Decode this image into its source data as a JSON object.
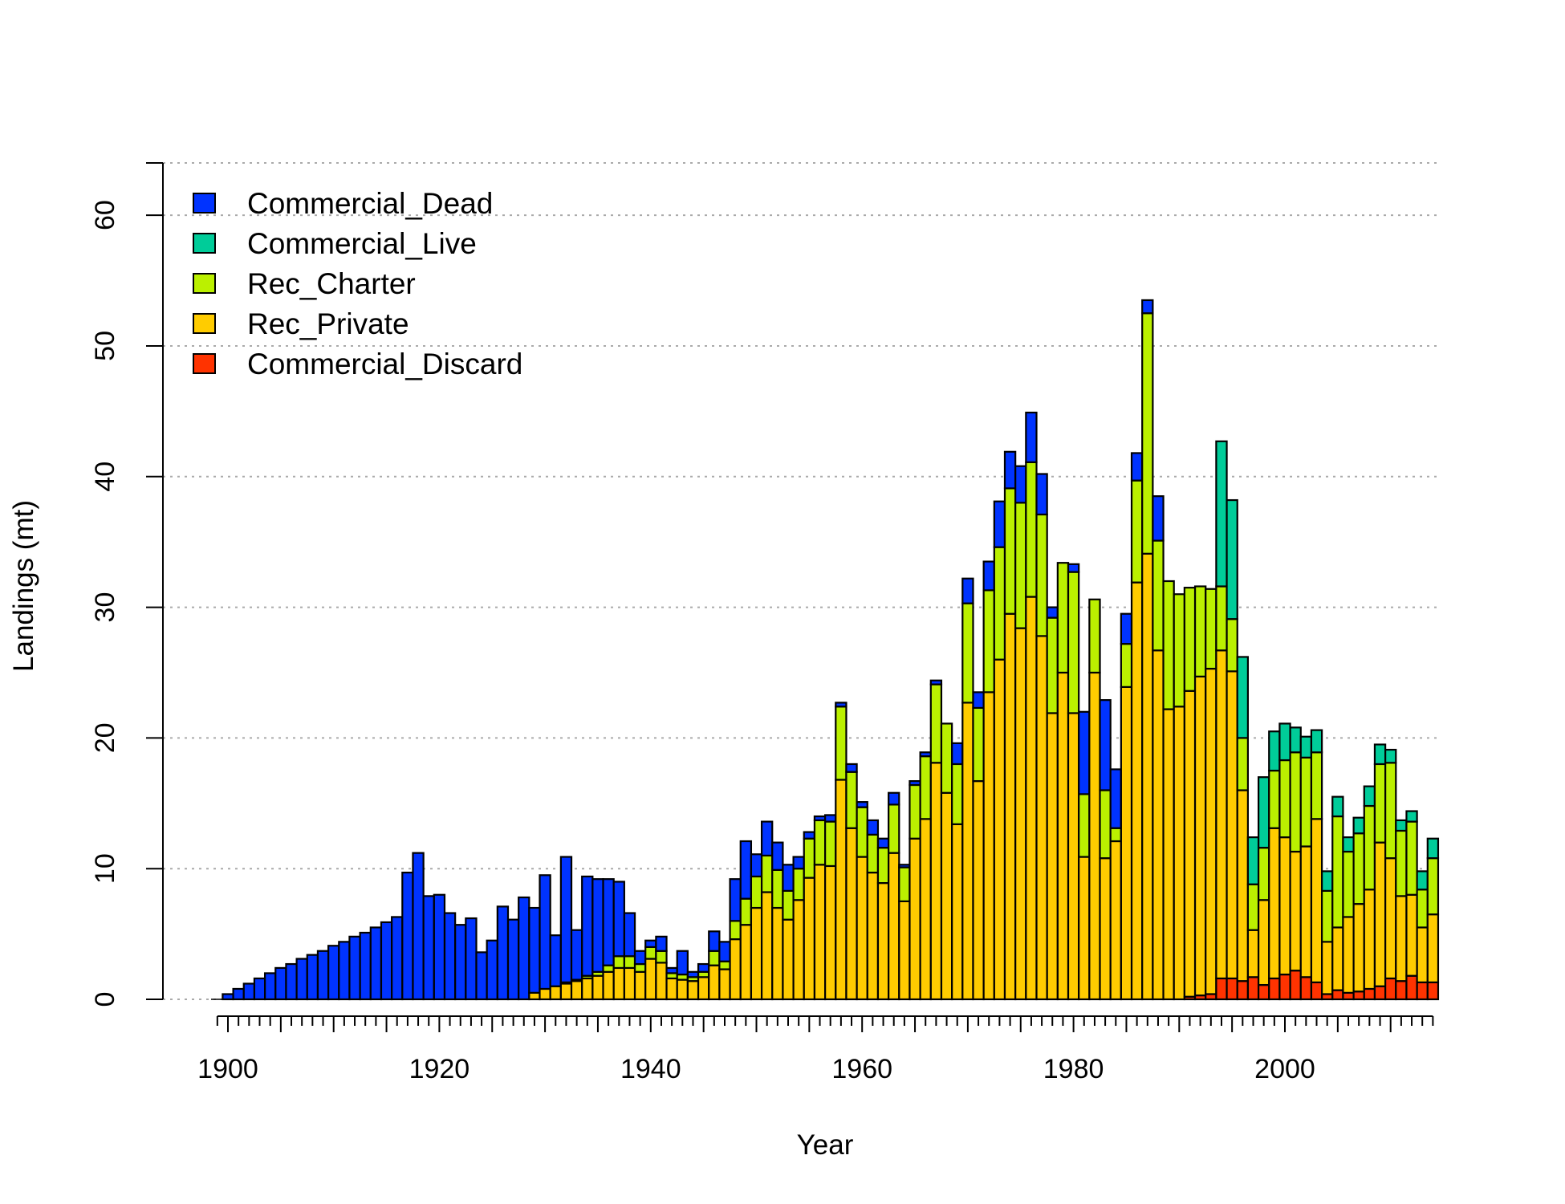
{
  "chart_data": {
    "type": "bar",
    "stacked": true,
    "xlabel": "Year",
    "ylabel": "Landings (mt)",
    "xlim": [
      1899,
      2014
    ],
    "ylim": [
      0,
      64
    ],
    "x_ticks_major": [
      1900,
      1920,
      1940,
      1960,
      1980,
      2000
    ],
    "y_ticks": [
      0,
      10,
      20,
      30,
      40,
      50,
      60
    ],
    "grid": "horizontal-dotted",
    "legend_position": "top-left",
    "x": [
      1899,
      1900,
      1901,
      1902,
      1903,
      1904,
      1905,
      1906,
      1907,
      1908,
      1909,
      1910,
      1911,
      1912,
      1913,
      1914,
      1915,
      1916,
      1917,
      1918,
      1919,
      1920,
      1921,
      1922,
      1923,
      1924,
      1925,
      1926,
      1927,
      1928,
      1929,
      1930,
      1931,
      1932,
      1933,
      1934,
      1935,
      1936,
      1937,
      1938,
      1939,
      1940,
      1941,
      1942,
      1943,
      1944,
      1945,
      1946,
      1947,
      1948,
      1949,
      1950,
      1951,
      1952,
      1953,
      1954,
      1955,
      1956,
      1957,
      1958,
      1959,
      1960,
      1961,
      1962,
      1963,
      1964,
      1965,
      1966,
      1967,
      1968,
      1969,
      1970,
      1971,
      1972,
      1973,
      1974,
      1975,
      1976,
      1977,
      1978,
      1979,
      1980,
      1981,
      1982,
      1983,
      1984,
      1985,
      1986,
      1987,
      1988,
      1989,
      1990,
      1991,
      1992,
      1993,
      1994,
      1995,
      1996,
      1997,
      1998,
      1999,
      2000,
      2001,
      2002,
      2003,
      2004,
      2005,
      2006,
      2007,
      2008,
      2009,
      2010,
      2011,
      2012,
      2013,
      2014
    ],
    "series": [
      {
        "name": "Commercial_Discard",
        "color": "#ff3300",
        "values": [
          0,
          0,
          0,
          0,
          0,
          0,
          0,
          0,
          0,
          0,
          0,
          0,
          0,
          0,
          0,
          0,
          0,
          0,
          0,
          0,
          0,
          0,
          0,
          0,
          0,
          0,
          0,
          0,
          0,
          0,
          0,
          0,
          0,
          0,
          0,
          0,
          0,
          0,
          0,
          0,
          0,
          0,
          0,
          0,
          0,
          0,
          0,
          0,
          0,
          0,
          0,
          0,
          0,
          0,
          0,
          0,
          0,
          0,
          0,
          0,
          0,
          0,
          0,
          0,
          0,
          0,
          0,
          0,
          0,
          0,
          0,
          0,
          0,
          0,
          0,
          0,
          0,
          0,
          0,
          0,
          0,
          0,
          0,
          0,
          0,
          0,
          0,
          0,
          0,
          0,
          0,
          0,
          0.2,
          0.3,
          0.4,
          1.6,
          1.6,
          1.4,
          1.7,
          1.1,
          1.6,
          1.9,
          2.2,
          1.7,
          1.3,
          0.4,
          0.7,
          0.5,
          0.6,
          0.8,
          1.0,
          1.6,
          1.4,
          1.8,
          1.3,
          1.3
        ]
      },
      {
        "name": "Rec_Private",
        "color": "#ffcc00",
        "values": [
          0,
          0,
          0,
          0,
          0,
          0,
          0,
          0,
          0,
          0,
          0,
          0,
          0,
          0,
          0,
          0,
          0,
          0,
          0,
          0,
          0,
          0,
          0,
          0,
          0,
          0,
          0,
          0,
          0,
          0,
          0.5,
          0.8,
          1.0,
          1.2,
          1.4,
          1.6,
          1.8,
          2.1,
          2.4,
          2.4,
          2.1,
          3.1,
          2.8,
          1.6,
          1.5,
          1.4,
          1.7,
          2.6,
          2.3,
          4.6,
          5.7,
          7.0,
          8.2,
          7.0,
          6.1,
          7.6,
          9.3,
          10.3,
          10.2,
          16.8,
          13.1,
          10.9,
          9.7,
          8.9,
          11.2,
          7.5,
          12.3,
          13.8,
          18.1,
          15.8,
          13.4,
          22.7,
          16.7,
          23.5,
          26.0,
          29.5,
          28.4,
          30.8,
          27.8,
          21.9,
          25.0,
          21.9,
          10.9,
          25.0,
          10.8,
          12.1,
          23.9,
          31.9,
          34.1,
          26.7,
          22.2,
          22.4,
          23.4,
          24.4,
          24.9,
          25.1,
          23.5,
          14.6,
          3.6,
          6.5,
          11.5,
          10.5,
          9.1,
          10.0,
          12.5,
          4.0,
          4.8,
          5.8,
          6.7,
          7.6,
          11.0,
          9.2,
          6.5,
          6.2,
          4.2,
          5.2
        ]
      },
      {
        "name": "Rec_Charter",
        "color": "#bbf000",
        "values": [
          0,
          0,
          0,
          0,
          0,
          0,
          0,
          0,
          0,
          0,
          0,
          0,
          0,
          0,
          0,
          0,
          0,
          0,
          0,
          0,
          0,
          0,
          0,
          0,
          0,
          0,
          0,
          0,
          0,
          0,
          0,
          0,
          0,
          0.1,
          0.1,
          0.2,
          0.3,
          0.5,
          0.9,
          0.9,
          0.6,
          0.9,
          0.9,
          0.4,
          0.4,
          0.3,
          0.4,
          1.1,
          0.6,
          1.4,
          2.0,
          2.4,
          2.8,
          2.9,
          2.2,
          2.4,
          3.0,
          3.4,
          3.4,
          5.6,
          4.3,
          3.8,
          2.9,
          2.7,
          3.7,
          2.6,
          4.1,
          4.8,
          6.0,
          5.3,
          4.6,
          7.6,
          5.6,
          7.8,
          8.6,
          9.6,
          9.6,
          10.3,
          9.3,
          7.3,
          8.4,
          10.8,
          4.8,
          5.6,
          5.2,
          1.0,
          3.3,
          7.8,
          18.4,
          8.4,
          9.8,
          8.6,
          7.9,
          6.9,
          6.1,
          4.9,
          4.0,
          4.0,
          3.5,
          4.0,
          4.4,
          5.9,
          7.6,
          6.8,
          5.1,
          3.9,
          8.5,
          5.0,
          5.4,
          6.4,
          6.0,
          7.3,
          5.0,
          5.6,
          2.9,
          4.3
        ]
      },
      {
        "name": "Commercial_Live",
        "color": "#00cc99",
        "values": [
          0,
          0,
          0,
          0,
          0,
          0,
          0,
          0,
          0,
          0,
          0,
          0,
          0,
          0,
          0,
          0,
          0,
          0,
          0,
          0,
          0,
          0,
          0,
          0,
          0,
          0,
          0,
          0,
          0,
          0,
          0,
          0,
          0,
          0,
          0,
          0,
          0,
          0,
          0,
          0,
          0,
          0,
          0,
          0,
          0,
          0,
          0,
          0,
          0,
          0,
          0,
          0,
          0,
          0,
          0,
          0,
          0,
          0,
          0,
          0,
          0,
          0,
          0,
          0,
          0,
          0,
          0,
          0,
          0,
          0,
          0,
          0,
          0,
          0,
          0,
          0,
          0,
          0,
          0,
          0,
          0,
          0,
          0,
          0,
          0,
          0,
          0,
          0,
          0,
          0,
          0,
          0,
          0,
          0,
          0,
          11.1,
          9.1,
          6.2,
          3.6,
          5.4,
          3.0,
          2.8,
          1.9,
          1.6,
          1.7,
          1.5,
          1.5,
          1.1,
          1.2,
          1.5,
          1.5,
          1.0,
          0.8,
          0.8,
          1.4,
          1.5
        ]
      },
      {
        "name": "Commercial_Dead",
        "color": "#0033ff",
        "values": [
          0,
          0.4,
          0.8,
          1.2,
          1.6,
          2.0,
          2.4,
          2.7,
          3.1,
          3.4,
          3.7,
          4.1,
          4.4,
          4.8,
          5.1,
          5.5,
          5.9,
          6.3,
          9.7,
          11.2,
          7.9,
          8.0,
          6.6,
          5.7,
          6.2,
          3.6,
          4.5,
          7.1,
          6.1,
          7.8,
          6.5,
          8.7,
          3.9,
          9.6,
          3.8,
          7.6,
          7.1,
          6.6,
          5.7,
          3.3,
          1.0,
          0.5,
          1.1,
          0.4,
          1.8,
          0.4,
          0.6,
          1.5,
          1.5,
          3.2,
          4.4,
          1.7,
          2.6,
          2.1,
          2.0,
          0.9,
          0.5,
          0.3,
          0.5,
          0.3,
          0.6,
          0.4,
          1.1,
          0.7,
          0.9,
          0.2,
          0.3,
          0.3,
          0.3,
          0.0,
          1.6,
          1.9,
          1.2,
          2.2,
          3.5,
          2.8,
          2.8,
          3.8,
          3.1,
          0.8,
          0.0,
          0.6,
          6.3,
          0.0,
          6.9,
          4.5,
          2.3,
          2.1,
          1.0,
          3.4,
          0.0,
          0.0,
          0.0,
          0.0,
          0.0,
          0.0,
          0.0,
          0.0,
          0.0,
          0.0,
          0.0,
          0.0,
          0.0,
          0.0,
          0.0,
          0.0,
          0.0,
          0.0,
          0.0,
          0.0,
          0.0,
          0.0,
          0.0,
          0.0,
          0.0,
          0.0
        ]
      }
    ]
  }
}
